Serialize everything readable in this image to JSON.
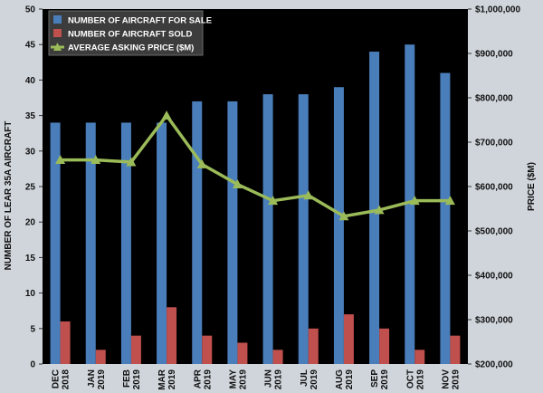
{
  "chart_data": {
    "type": "bar",
    "categories": [
      [
        "DEC",
        "2018"
      ],
      [
        "JAN",
        "2019"
      ],
      [
        "FEB",
        "2019"
      ],
      [
        "MAR",
        "2019"
      ],
      [
        "APR",
        "2019"
      ],
      [
        "MAY",
        "2019"
      ],
      [
        "JUN",
        "2019"
      ],
      [
        "JUL",
        "2019"
      ],
      [
        "AUG",
        "2019"
      ],
      [
        "SEP",
        "2019"
      ],
      [
        "OCT",
        "2019"
      ],
      [
        "NOV",
        "2019"
      ]
    ],
    "series": [
      {
        "name": "NUMBER OF AIRCRAFT FOR SALE",
        "type": "bar",
        "axis": "left",
        "color": "#4a7ebb",
        "values": [
          34,
          34,
          34,
          34,
          37,
          37,
          38,
          38,
          39,
          44,
          45,
          41
        ]
      },
      {
        "name": "NUMBER OF AIRCRAFT SOLD",
        "type": "bar",
        "axis": "left",
        "color": "#c0504d",
        "values": [
          6,
          2,
          4,
          8,
          4,
          3,
          2,
          5,
          7,
          5,
          2,
          4
        ]
      },
      {
        "name": "AVERAGE ASKING PRICE ($M)",
        "type": "line",
        "axis": "right",
        "color": "#9bbb59",
        "values": [
          660000,
          660000,
          655000,
          760000,
          650000,
          605000,
          568000,
          580000,
          533000,
          547000,
          568000,
          568000
        ]
      }
    ],
    "ylabel": "NUMBER OF LEAR 35A AIRCRAFT",
    "y2label": "PRICE ($M)",
    "ylim": [
      0,
      50
    ],
    "y2lim": [
      200000,
      1000000
    ],
    "yticks": [
      "0",
      "5",
      "10",
      "15",
      "20",
      "25",
      "30",
      "35",
      "40",
      "45",
      "50"
    ],
    "y2ticks": [
      "$200,000",
      "$300,000",
      "$400,000",
      "$500,000",
      "$600,000",
      "$700,000",
      "$800,000",
      "$900,000",
      "$1,000,000"
    ],
    "legend_position": "top-left",
    "plot_background": "#000000",
    "grid": false
  }
}
